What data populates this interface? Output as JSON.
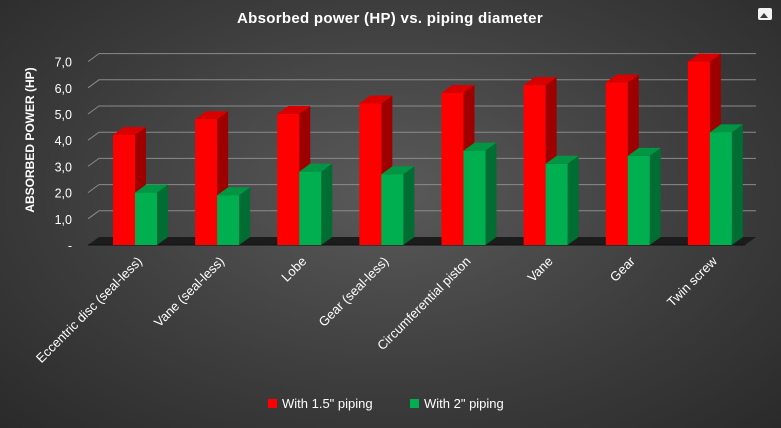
{
  "chart_data": {
    "type": "bar",
    "title": "Absorbed power (HP) vs. piping diameter",
    "xlabel": "",
    "ylabel": "ABSORBED POWER (HP)",
    "categories": [
      "Eccentric disc (seal-less)",
      "Vane (seal-less)",
      "Lobe",
      "Gear (seal-less)",
      "Circumferential piston",
      "Vane",
      "Gear",
      "Twin screw"
    ],
    "series": [
      {
        "name": "With 1.5\" piping",
        "values": [
          4.2,
          4.8,
          5.0,
          5.4,
          5.8,
          6.1,
          6.2,
          7.0
        ],
        "color": "#ff0000"
      },
      {
        "name": "With 2\" piping",
        "values": [
          2.0,
          1.9,
          2.8,
          2.7,
          3.6,
          3.1,
          3.4,
          4.3
        ],
        "color": "#00b050"
      }
    ],
    "yticks": [
      "-",
      "1,0",
      "2,0",
      "3,0",
      "4,0",
      "5,0",
      "6,0",
      "7,0"
    ],
    "ylim": [
      0,
      7
    ],
    "grid": true,
    "legend": "bottom",
    "three_d": true
  },
  "icons": {
    "corner": "image-icon"
  }
}
